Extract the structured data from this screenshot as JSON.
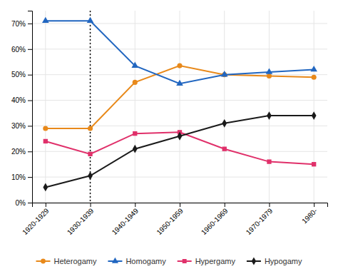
{
  "chart_data": {
    "type": "line",
    "categories": [
      "1920-1929",
      "1930-1939",
      "1940-1949",
      "1950-1959",
      "1960-1969",
      "1970-1979",
      "1980-"
    ],
    "series": [
      {
        "name": "Heterogamy",
        "color": "#e8891a",
        "marker": "circle",
        "values": [
          0.29,
          0.29,
          0.47,
          0.535,
          0.5,
          0.495,
          0.49
        ]
      },
      {
        "name": "Homogamy",
        "color": "#2166c0",
        "marker": "triangle",
        "values": [
          0.71,
          0.71,
          0.535,
          0.465,
          0.5,
          0.51,
          0.52
        ]
      },
      {
        "name": "Hypergamy",
        "color": "#e0306a",
        "marker": "square",
        "values": [
          0.24,
          0.19,
          0.27,
          0.275,
          0.21,
          0.16,
          0.15
        ]
      },
      {
        "name": "Hypogamy",
        "color": "#1a1a1a",
        "marker": "diamond",
        "values": [
          0.06,
          0.105,
          0.21,
          0.26,
          0.31,
          0.34,
          0.34
        ]
      }
    ],
    "reference_lines": [
      {
        "x": "1930-1939",
        "color": "#000000",
        "line_style": "dotted"
      }
    ],
    "ylim": [
      0,
      0.75
    ],
    "yticks": [
      {
        "value": 0.0,
        "label": "0%"
      },
      {
        "value": 0.1,
        "label": "10%"
      },
      {
        "value": 0.2,
        "label": "20%"
      },
      {
        "value": 0.3,
        "label": "30%"
      },
      {
        "value": 0.4,
        "label": "40%"
      },
      {
        "value": 0.5,
        "label": "50%"
      },
      {
        "value": 0.6,
        "label": "60%"
      },
      {
        "value": 0.7,
        "label": "70%"
      }
    ],
    "grid": true,
    "legend": "bottom"
  }
}
